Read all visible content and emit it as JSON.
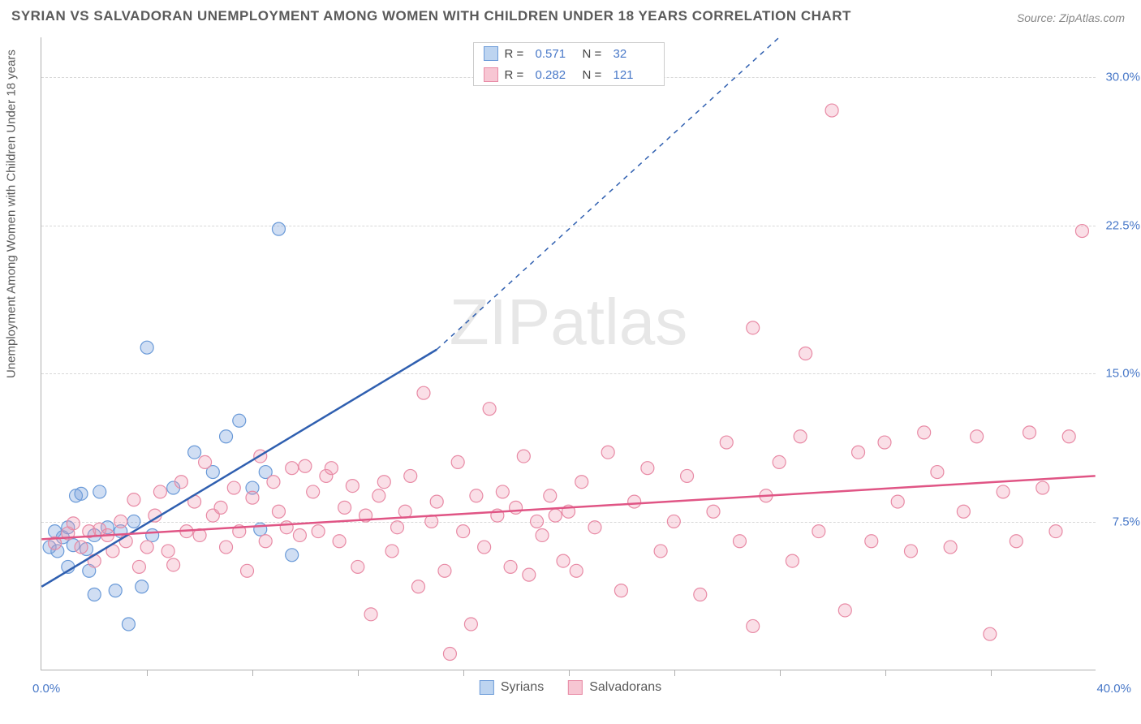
{
  "title": "SYRIAN VS SALVADORAN UNEMPLOYMENT AMONG WOMEN WITH CHILDREN UNDER 18 YEARS CORRELATION CHART",
  "source": "Source: ZipAtlas.com",
  "y_axis_label": "Unemployment Among Women with Children Under 18 years",
  "watermark": "ZIPatlas",
  "chart": {
    "type": "scatter",
    "background_color": "#ffffff",
    "grid_color": "#d8d8d8",
    "axis_color": "#b0b0b0",
    "tick_label_color": "#4878c8",
    "xlim": [
      0,
      40
    ],
    "ylim": [
      0,
      32
    ],
    "x_origin_label": "0.0%",
    "x_max_label": "40.0%",
    "y_ticks": [
      7.5,
      15.0,
      22.5,
      30.0
    ],
    "y_tick_labels": [
      "7.5%",
      "15.0%",
      "22.5%",
      "30.0%"
    ],
    "x_tick_positions": [
      4,
      8,
      12,
      16,
      20,
      24,
      28,
      32,
      36
    ],
    "marker_radius": 8,
    "marker_stroke_width": 1.2,
    "trend_line_width": 2.5,
    "trend_dash_width": 1.5,
    "series": [
      {
        "name": "Syrians",
        "color_fill": "rgba(120,160,220,0.35)",
        "color_stroke": "#6a9ad8",
        "swatch_fill": "#bdd4f0",
        "swatch_border": "#6a9ad8",
        "R": "0.571",
        "N": "32",
        "trend": {
          "x1": 0,
          "y1": 4.2,
          "x2_solid": 15,
          "y2_solid": 16.2,
          "x2": 28,
          "y2": 32,
          "color": "#2f5fb0"
        },
        "points": [
          [
            0.3,
            6.2
          ],
          [
            0.5,
            7.0
          ],
          [
            0.6,
            6.0
          ],
          [
            0.8,
            6.7
          ],
          [
            1.0,
            7.2
          ],
          [
            1.0,
            5.2
          ],
          [
            1.2,
            6.3
          ],
          [
            1.3,
            8.8
          ],
          [
            1.5,
            8.9
          ],
          [
            1.7,
            6.1
          ],
          [
            1.8,
            5.0
          ],
          [
            2.0,
            6.8
          ],
          [
            2.2,
            9.0
          ],
          [
            2.0,
            3.8
          ],
          [
            2.5,
            7.2
          ],
          [
            2.8,
            4.0
          ],
          [
            3.0,
            7.0
          ],
          [
            3.3,
            2.3
          ],
          [
            3.5,
            7.5
          ],
          [
            3.8,
            4.2
          ],
          [
            4.0,
            16.3
          ],
          [
            4.2,
            6.8
          ],
          [
            5.0,
            9.2
          ],
          [
            5.8,
            11.0
          ],
          [
            6.5,
            10.0
          ],
          [
            7.0,
            11.8
          ],
          [
            7.5,
            12.6
          ],
          [
            8.0,
            9.2
          ],
          [
            8.3,
            7.1
          ],
          [
            8.5,
            10.0
          ],
          [
            9.5,
            5.8
          ],
          [
            9.0,
            22.3
          ]
        ]
      },
      {
        "name": "Salvadorans",
        "color_fill": "rgba(240,150,175,0.30)",
        "color_stroke": "#e88aa5",
        "swatch_fill": "#f7c6d3",
        "swatch_border": "#e88aa5",
        "R": "0.282",
        "N": "121",
        "trend": {
          "x1": 0,
          "y1": 6.6,
          "x2_solid": 40,
          "y2_solid": 9.8,
          "x2": 40,
          "y2": 9.8,
          "color": "#e05585"
        },
        "points": [
          [
            0.5,
            6.4
          ],
          [
            1.0,
            6.9
          ],
          [
            1.2,
            7.4
          ],
          [
            1.5,
            6.2
          ],
          [
            1.8,
            7.0
          ],
          [
            2.0,
            5.5
          ],
          [
            2.2,
            7.1
          ],
          [
            2.5,
            6.8
          ],
          [
            2.7,
            6.0
          ],
          [
            3.0,
            7.5
          ],
          [
            3.2,
            6.5
          ],
          [
            3.5,
            8.6
          ],
          [
            3.7,
            5.2
          ],
          [
            4.0,
            6.2
          ],
          [
            4.3,
            7.8
          ],
          [
            4.5,
            9.0
          ],
          [
            4.8,
            6.0
          ],
          [
            5.0,
            5.3
          ],
          [
            5.3,
            9.5
          ],
          [
            5.5,
            7.0
          ],
          [
            5.8,
            8.5
          ],
          [
            6.0,
            6.8
          ],
          [
            6.2,
            10.5
          ],
          [
            6.5,
            7.8
          ],
          [
            6.8,
            8.2
          ],
          [
            7.0,
            6.2
          ],
          [
            7.3,
            9.2
          ],
          [
            7.5,
            7.0
          ],
          [
            7.8,
            5.0
          ],
          [
            8.0,
            8.7
          ],
          [
            8.3,
            10.8
          ],
          [
            8.5,
            6.5
          ],
          [
            8.8,
            9.5
          ],
          [
            9.0,
            8.0
          ],
          [
            9.3,
            7.2
          ],
          [
            9.5,
            10.2
          ],
          [
            9.8,
            6.8
          ],
          [
            10.0,
            10.3
          ],
          [
            10.3,
            9.0
          ],
          [
            10.5,
            7.0
          ],
          [
            10.8,
            9.8
          ],
          [
            11.0,
            10.2
          ],
          [
            11.3,
            6.5
          ],
          [
            11.5,
            8.2
          ],
          [
            11.8,
            9.3
          ],
          [
            12.0,
            5.2
          ],
          [
            12.3,
            7.8
          ],
          [
            12.5,
            2.8
          ],
          [
            12.8,
            8.8
          ],
          [
            13.0,
            9.5
          ],
          [
            13.3,
            6.0
          ],
          [
            13.5,
            7.2
          ],
          [
            13.8,
            8.0
          ],
          [
            14.0,
            9.8
          ],
          [
            14.3,
            4.2
          ],
          [
            14.5,
            14.0
          ],
          [
            14.8,
            7.5
          ],
          [
            15.0,
            8.5
          ],
          [
            15.3,
            5.0
          ],
          [
            15.5,
            0.8
          ],
          [
            15.8,
            10.5
          ],
          [
            16.0,
            7.0
          ],
          [
            16.3,
            2.3
          ],
          [
            16.5,
            8.8
          ],
          [
            16.8,
            6.2
          ],
          [
            17.0,
            13.2
          ],
          [
            17.3,
            7.8
          ],
          [
            17.5,
            9.0
          ],
          [
            17.8,
            5.2
          ],
          [
            18.0,
            8.2
          ],
          [
            18.3,
            10.8
          ],
          [
            18.5,
            4.8
          ],
          [
            18.8,
            7.5
          ],
          [
            19.0,
            6.8
          ],
          [
            19.3,
            8.8
          ],
          [
            19.5,
            7.8
          ],
          [
            19.8,
            5.5
          ],
          [
            20.0,
            8.0
          ],
          [
            20.3,
            5.0
          ],
          [
            20.5,
            9.5
          ],
          [
            21.0,
            7.2
          ],
          [
            21.5,
            11.0
          ],
          [
            22.0,
            4.0
          ],
          [
            22.5,
            8.5
          ],
          [
            23.0,
            10.2
          ],
          [
            23.5,
            6.0
          ],
          [
            24.0,
            7.5
          ],
          [
            24.5,
            9.8
          ],
          [
            25.0,
            3.8
          ],
          [
            25.5,
            8.0
          ],
          [
            26.0,
            11.5
          ],
          [
            26.5,
            6.5
          ],
          [
            27.0,
            2.2
          ],
          [
            27.5,
            8.8
          ],
          [
            28.0,
            10.5
          ],
          [
            28.5,
            5.5
          ],
          [
            27.0,
            17.3
          ],
          [
            28.8,
            11.8
          ],
          [
            29.0,
            16.0
          ],
          [
            29.5,
            7.0
          ],
          [
            30.0,
            28.3
          ],
          [
            30.5,
            3.0
          ],
          [
            31.0,
            11.0
          ],
          [
            31.5,
            6.5
          ],
          [
            32.0,
            11.5
          ],
          [
            32.5,
            8.5
          ],
          [
            33.0,
            6.0
          ],
          [
            33.5,
            12.0
          ],
          [
            34.0,
            10.0
          ],
          [
            34.5,
            6.2
          ],
          [
            35.0,
            8.0
          ],
          [
            35.5,
            11.8
          ],
          [
            36.0,
            1.8
          ],
          [
            36.5,
            9.0
          ],
          [
            37.0,
            6.5
          ],
          [
            37.5,
            12.0
          ],
          [
            38.0,
            9.2
          ],
          [
            38.5,
            7.0
          ],
          [
            39.0,
            11.8
          ],
          [
            39.5,
            22.2
          ]
        ]
      }
    ]
  },
  "legend_top_labels": {
    "R": "R  =",
    "N": "N  ="
  },
  "legend_bottom": [
    "Syrians",
    "Salvadorans"
  ]
}
